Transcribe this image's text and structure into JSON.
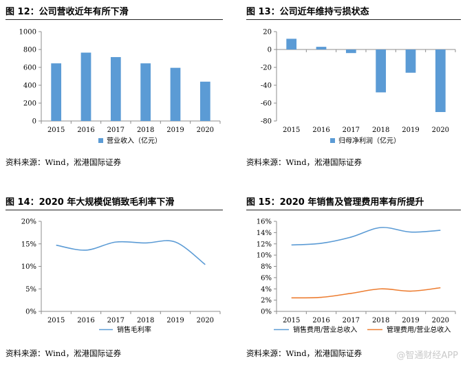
{
  "watermark": "@智通财经APP",
  "charts": [
    {
      "title": "图 12：公司营收近年有所下滑",
      "source": "资料来源：Wind，淞港国际证券",
      "chart_data": {
        "type": "bar",
        "categories": [
          "2015",
          "2016",
          "2017",
          "2018",
          "2019",
          "2020"
        ],
        "series": [
          {
            "name": "营业收入（亿元）",
            "values": [
              645,
              765,
              715,
              645,
              595,
              440
            ]
          }
        ],
        "ylim": [
          0,
          1000
        ],
        "yticks": [
          0,
          200,
          400,
          600,
          800,
          1000
        ],
        "ytick_labels": [
          "0",
          "200",
          "400",
          "600",
          "800",
          "1000"
        ],
        "legend": "bottom",
        "grid": false,
        "colors": [
          "#5b9bd5"
        ]
      }
    },
    {
      "title": "图 13：公司近年维持亏损状态",
      "source": "资料来源：Wind，淞港国际证券",
      "chart_data": {
        "type": "bar",
        "categories": [
          "2015",
          "2016",
          "2017",
          "2018",
          "2019",
          "2020"
        ],
        "series": [
          {
            "name": "归母净利润（亿元）",
            "values": [
              12,
              3,
              -4,
              -48,
              -26,
              -70
            ]
          }
        ],
        "ylim": [
          -80,
          20
        ],
        "yticks": [
          -80,
          -60,
          -40,
          -20,
          0,
          20
        ],
        "ytick_labels": [
          "-80",
          "-60",
          "-40",
          "-20",
          "0",
          "20"
        ],
        "legend": "bottom",
        "grid": false,
        "colors": [
          "#5b9bd5"
        ]
      }
    },
    {
      "title": "图 14：2020 年大规模促销致毛利率下滑",
      "source": "资料来源：Wind，淞港国际证券",
      "chart_data": {
        "type": "line",
        "categories": [
          "2015",
          "2016",
          "2017",
          "2018",
          "2019",
          "2020"
        ],
        "series": [
          {
            "name": "销售毛利率",
            "values": [
              14.7,
              13.6,
              15.4,
              15.2,
              15.4,
              10.4
            ]
          }
        ],
        "ylim": [
          0,
          20
        ],
        "yticks": [
          0,
          5,
          10,
          15,
          20
        ],
        "ytick_labels": [
          "0%",
          "5%",
          "10%",
          "15%",
          "20%"
        ],
        "legend": "bottom",
        "grid": false,
        "colors": [
          "#5b9bd5"
        ]
      }
    },
    {
      "title": "图 15：2020 年销售及管理费用率有所提升",
      "source": "资料来源：Wind，淞港国际证券",
      "chart_data": {
        "type": "line",
        "categories": [
          "2015",
          "2016",
          "2017",
          "2018",
          "2019",
          "2020"
        ],
        "series": [
          {
            "name": "销售费用/营业总收入",
            "values": [
              11.8,
              12.1,
              13.2,
              14.9,
              14.1,
              14.4
            ]
          },
          {
            "name": "管理费用/营业总收入",
            "values": [
              2.4,
              2.5,
              3.2,
              4.0,
              3.6,
              4.2
            ]
          }
        ],
        "ylim": [
          0,
          16
        ],
        "yticks": [
          0,
          2,
          4,
          6,
          8,
          10,
          12,
          14,
          16
        ],
        "ytick_labels": [
          "0%",
          "2%",
          "4%",
          "6%",
          "8%",
          "10%",
          "12%",
          "14%",
          "16%"
        ],
        "legend": "bottom",
        "grid": false,
        "colors": [
          "#5b9bd5",
          "#ed7d31"
        ]
      }
    }
  ]
}
